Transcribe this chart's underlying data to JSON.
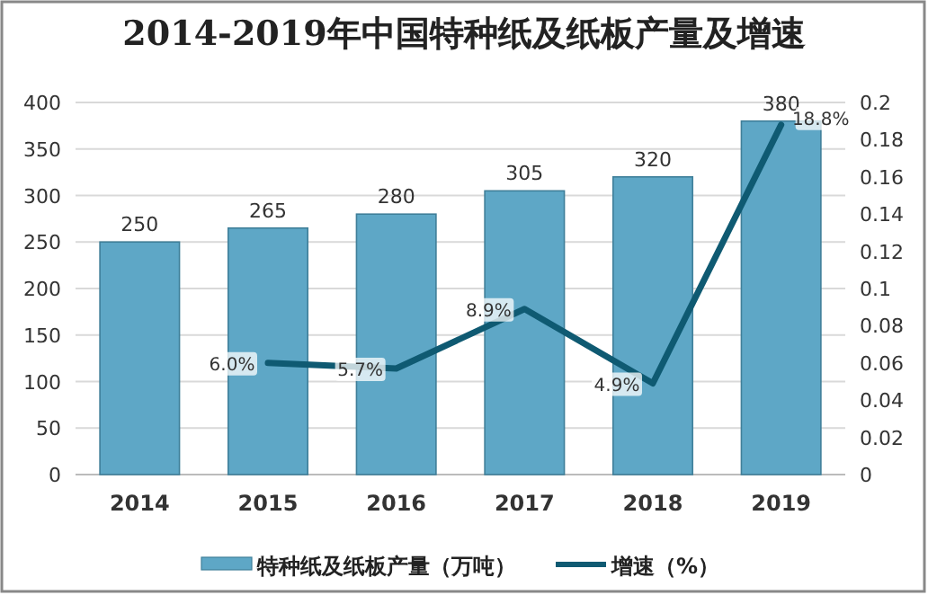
{
  "chart_data": {
    "type": "bar",
    "title": "2014-2019年中国特种纸及纸板产量及增速",
    "categories": [
      "2014",
      "2015",
      "2016",
      "2017",
      "2018",
      "2019"
    ],
    "series": [
      {
        "name": "特种纸及纸板产量（万吨）",
        "color": "#5ea7c6",
        "values": [
          250,
          265,
          280,
          305,
          320,
          380
        ],
        "data_labels": true
      },
      {
        "name": "增速（%）",
        "type": "line",
        "axis": "y2",
        "color": "#0f5a72",
        "values": [
          null,
          0.06,
          0.057,
          0.089,
          0.049,
          0.188
        ],
        "value_labels": [
          null,
          "6.0%",
          "5.7%",
          "8.9%",
          "4.9%",
          "18.8%"
        ]
      }
    ],
    "ylim": [
      0,
      400
    ],
    "yticks": [
      0,
      50,
      100,
      150,
      200,
      250,
      300,
      350,
      400
    ],
    "y2lim": [
      0,
      0.2
    ],
    "y2ticks": [
      0,
      0.02,
      0.04,
      0.06,
      0.08,
      0.1,
      0.12,
      0.14,
      0.16,
      0.18,
      0.2
    ],
    "grid": "y",
    "legend": "bottom",
    "marker": "none",
    "line_style": "solid"
  }
}
